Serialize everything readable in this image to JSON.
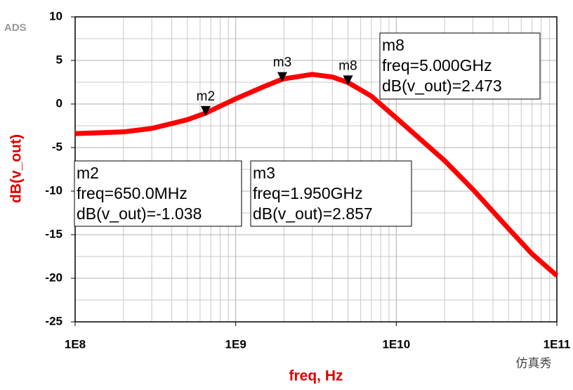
{
  "chart_data": {
    "type": "line",
    "log_x": true,
    "grid": true,
    "app_label": "ADS",
    "xlabel": "freq, Hz",
    "ylabel": "dB(v_out)",
    "xlim": [
      100000000,
      100000000000
    ],
    "ylim": [
      -25,
      10
    ],
    "xticks": [
      {
        "value": 100000000,
        "label": "1E8"
      },
      {
        "value": 1000000000,
        "label": "1E9"
      },
      {
        "value": 10000000000,
        "label": "1E10"
      },
      {
        "value": 100000000000,
        "label": "1E11"
      }
    ],
    "yticks": [
      -25,
      -20,
      -15,
      -10,
      -5,
      0,
      5,
      10
    ],
    "x": [
      100000000,
      200000000,
      300000000,
      500000000,
      650000000,
      1000000000,
      1500000000,
      1950000000,
      3000000000,
      4000000000,
      5000000000,
      7000000000,
      10000000000,
      20000000000,
      30000000000,
      50000000000,
      70000000000,
      100000000000
    ],
    "series": [
      {
        "name": "dB(v_out)",
        "color": "#ff0000",
        "values": [
          -3.4,
          -3.2,
          -2.8,
          -1.8,
          -1.038,
          0.6,
          2.0,
          2.857,
          3.4,
          3.1,
          2.473,
          0.9,
          -1.6,
          -6.5,
          -9.8,
          -14.3,
          -17.2,
          -19.7
        ]
      }
    ],
    "markers": [
      {
        "name": "m2",
        "x": 650000000,
        "y": -1.038,
        "lines": [
          "freq=650.0MHz",
          "dB(v_out)=-1.038"
        ]
      },
      {
        "name": "m3",
        "x": 1950000000,
        "y": 2.857,
        "lines": [
          "freq=1.950GHz",
          "dB(v_out)=2.857"
        ]
      },
      {
        "name": "m8",
        "x": 5000000000,
        "y": 2.473,
        "lines": [
          "freq=5.000GHz",
          "dB(v_out)=2.473"
        ]
      }
    ],
    "watermark": "仿真秀"
  }
}
